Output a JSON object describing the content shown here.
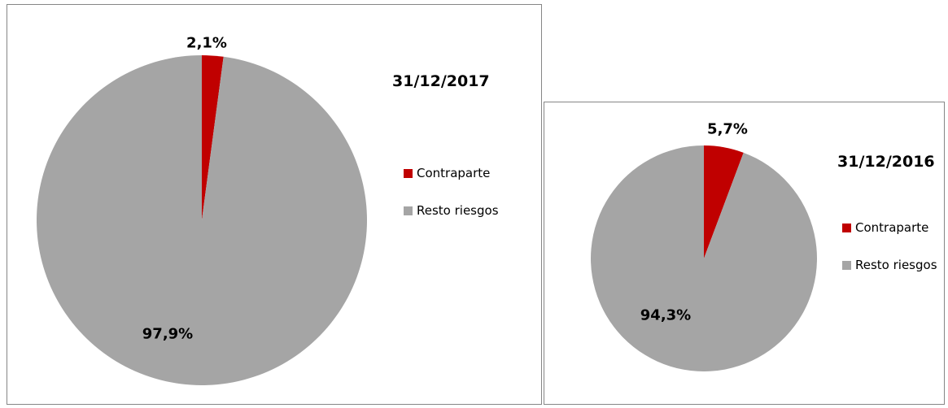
{
  "chart_data": [
    {
      "type": "pie",
      "title": "31/12/2017",
      "categories": [
        "Contraparte",
        "Resto riesgos"
      ],
      "values": [
        2.1,
        97.9
      ],
      "value_labels": [
        "2,1%",
        "97,9%"
      ],
      "colors": [
        "#c00000",
        "#a5a5a5"
      ]
    },
    {
      "type": "pie",
      "title": "31/12/2016",
      "categories": [
        "Contraparte",
        "Resto riesgos"
      ],
      "values": [
        5.7,
        94.3
      ],
      "value_labels": [
        "5,7%",
        "94,3%"
      ],
      "colors": [
        "#c00000",
        "#a5a5a5"
      ]
    }
  ]
}
